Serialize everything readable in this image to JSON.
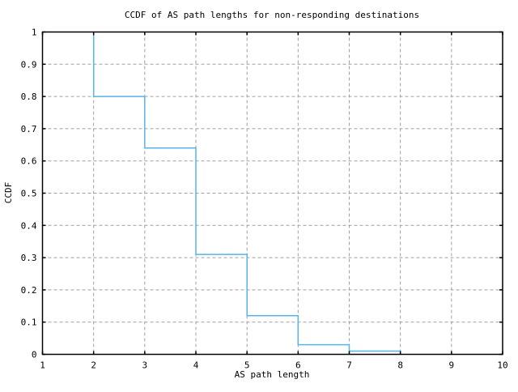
{
  "page": {
    "background": "#ffffff"
  },
  "chart_data": {
    "type": "line",
    "subtype": "step-function-ccdf",
    "title": "CCDF of AS path lengths for non-responding destinations",
    "xlabel": "AS path length",
    "ylabel": "CCDF",
    "xlim": [
      1,
      10
    ],
    "ylim": [
      0,
      1
    ],
    "xticks": [
      1,
      2,
      3,
      4,
      5,
      6,
      7,
      8,
      9,
      10
    ],
    "xtick_labels": [
      "1",
      "2",
      "3",
      "4",
      "5",
      "6",
      "7",
      "8",
      "9",
      "10"
    ],
    "yticks": [
      0,
      0.1,
      0.2,
      0.3,
      0.4,
      0.5,
      0.6,
      0.7,
      0.8,
      0.9,
      1
    ],
    "ytick_labels": [
      "0",
      "0.1",
      "0.2",
      "0.3",
      "0.4",
      "0.5",
      "0.6",
      "0.7",
      "0.8",
      "0.9",
      "1"
    ],
    "grid": {
      "show": true,
      "style": "dashed",
      "color": "#a0a0a0"
    },
    "legend": "none",
    "axis_color": "#000000",
    "series": [
      {
        "name": "CCDF of AS path length",
        "color": "#56b4e9",
        "markers": "none",
        "points": [
          [
            2,
            1.0
          ],
          [
            2,
            0.8
          ],
          [
            3,
            0.8
          ],
          [
            3,
            0.64
          ],
          [
            4,
            0.64
          ],
          [
            4,
            0.31
          ],
          [
            5,
            0.31
          ],
          [
            5,
            0.12
          ],
          [
            6,
            0.12
          ],
          [
            6,
            0.03
          ],
          [
            7,
            0.03
          ],
          [
            7,
            0.01
          ],
          [
            8,
            0.01
          ],
          [
            8,
            0.0
          ]
        ]
      }
    ],
    "ccdf_step_values": {
      "2": 0.8,
      "3": 0.64,
      "4": 0.31,
      "5": 0.12,
      "6": 0.03,
      "7": 0.01,
      "8": 0.0
    }
  }
}
